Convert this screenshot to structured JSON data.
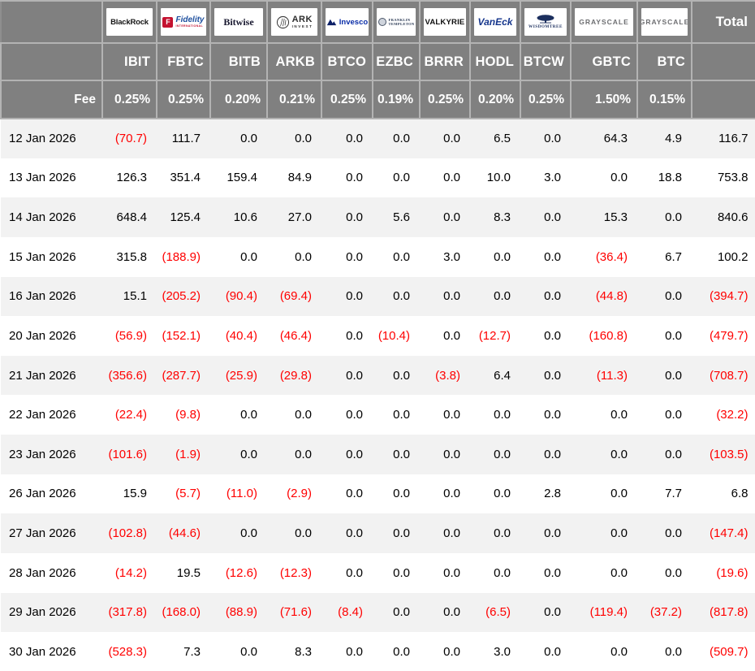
{
  "colors": {
    "header_bg": "#808080",
    "row_stripe": "#f2f2f2",
    "negative": "#ff0000",
    "header_text": "#ffffff"
  },
  "table": {
    "fee_label": "Fee",
    "total_label": "Total",
    "funds": [
      {
        "provider": "BlackRock",
        "ticker": "IBIT",
        "fee": "0.25%",
        "logo": "blackrock",
        "logo_lines": [
          "BlackRock"
        ]
      },
      {
        "provider": "Fidelity International",
        "ticker": "FBTC",
        "fee": "0.25%",
        "logo": "fidelity",
        "logo_lines": [
          "F",
          "Fidelity",
          "INTERNATIONAL"
        ]
      },
      {
        "provider": "Bitwise",
        "ticker": "BITB",
        "fee": "0.20%",
        "logo": "bitwise",
        "logo_lines": [
          "Bitwise"
        ]
      },
      {
        "provider": "ARK Invest",
        "ticker": "ARKB",
        "fee": "0.21%",
        "logo": "ark",
        "logo_lines": [
          "ARK",
          "INVEST"
        ]
      },
      {
        "provider": "Invesco",
        "ticker": "BTCO",
        "fee": "0.25%",
        "logo": "invesco",
        "logo_lines": [
          "Invesco"
        ]
      },
      {
        "provider": "Franklin Templeton",
        "ticker": "EZBC",
        "fee": "0.19%",
        "logo": "franklin",
        "logo_lines": [
          "FRANKLIN",
          "TEMPLETON"
        ]
      },
      {
        "provider": "Valkyrie",
        "ticker": "BRRR",
        "fee": "0.25%",
        "logo": "valkyrie",
        "logo_lines": [
          "VALKYRIE"
        ]
      },
      {
        "provider": "VanEck",
        "ticker": "HODL",
        "fee": "0.20%",
        "logo": "vaneck",
        "logo_lines": [
          "VanEck"
        ]
      },
      {
        "provider": "WisdomTree",
        "ticker": "BTCW",
        "fee": "0.25%",
        "logo": "wisdomtree",
        "logo_lines": [
          "WISDOMTREE"
        ]
      },
      {
        "provider": "Grayscale",
        "ticker": "GBTC",
        "fee": "1.50%",
        "logo": "grayscale",
        "logo_lines": [
          "GRAYSCALE"
        ]
      },
      {
        "provider": "Grayscale",
        "ticker": "BTC",
        "fee": "0.15%",
        "logo": "grayscale",
        "logo_lines": [
          "GRAYSCALE"
        ]
      }
    ],
    "rows": [
      {
        "date": "12 Jan 2026",
        "values": [
          "(70.7)",
          "111.7",
          "0.0",
          "0.0",
          "0.0",
          "0.0",
          "0.0",
          "6.5",
          "0.0",
          "64.3",
          "4.9"
        ],
        "total": "116.7"
      },
      {
        "date": "13 Jan 2026",
        "values": [
          "126.3",
          "351.4",
          "159.4",
          "84.9",
          "0.0",
          "0.0",
          "0.0",
          "10.0",
          "3.0",
          "0.0",
          "18.8"
        ],
        "total": "753.8"
      },
      {
        "date": "14 Jan 2026",
        "values": [
          "648.4",
          "125.4",
          "10.6",
          "27.0",
          "0.0",
          "5.6",
          "0.0",
          "8.3",
          "0.0",
          "15.3",
          "0.0"
        ],
        "total": "840.6"
      },
      {
        "date": "15 Jan 2026",
        "values": [
          "315.8",
          "(188.9)",
          "0.0",
          "0.0",
          "0.0",
          "0.0",
          "3.0",
          "0.0",
          "0.0",
          "(36.4)",
          "6.7"
        ],
        "total": "100.2"
      },
      {
        "date": "16 Jan 2026",
        "values": [
          "15.1",
          "(205.2)",
          "(90.4)",
          "(69.4)",
          "0.0",
          "0.0",
          "0.0",
          "0.0",
          "0.0",
          "(44.8)",
          "0.0"
        ],
        "total": "(394.7)"
      },
      {
        "date": "20 Jan 2026",
        "values": [
          "(56.9)",
          "(152.1)",
          "(40.4)",
          "(46.4)",
          "0.0",
          "(10.4)",
          "0.0",
          "(12.7)",
          "0.0",
          "(160.8)",
          "0.0"
        ],
        "total": "(479.7)"
      },
      {
        "date": "21 Jan 2026",
        "values": [
          "(356.6)",
          "(287.7)",
          "(25.9)",
          "(29.8)",
          "0.0",
          "0.0",
          "(3.8)",
          "6.4",
          "0.0",
          "(11.3)",
          "0.0"
        ],
        "total": "(708.7)"
      },
      {
        "date": "22 Jan 2026",
        "values": [
          "(22.4)",
          "(9.8)",
          "0.0",
          "0.0",
          "0.0",
          "0.0",
          "0.0",
          "0.0",
          "0.0",
          "0.0",
          "0.0"
        ],
        "total": "(32.2)"
      },
      {
        "date": "23 Jan 2026",
        "values": [
          "(101.6)",
          "(1.9)",
          "0.0",
          "0.0",
          "0.0",
          "0.0",
          "0.0",
          "0.0",
          "0.0",
          "0.0",
          "0.0"
        ],
        "total": "(103.5)"
      },
      {
        "date": "26 Jan 2026",
        "values": [
          "15.9",
          "(5.7)",
          "(11.0)",
          "(2.9)",
          "0.0",
          "0.0",
          "0.0",
          "0.0",
          "2.8",
          "0.0",
          "7.7"
        ],
        "total": "6.8"
      },
      {
        "date": "27 Jan 2026",
        "values": [
          "(102.8)",
          "(44.6)",
          "0.0",
          "0.0",
          "0.0",
          "0.0",
          "0.0",
          "0.0",
          "0.0",
          "0.0",
          "0.0"
        ],
        "total": "(147.4)"
      },
      {
        "date": "28 Jan 2026",
        "values": [
          "(14.2)",
          "19.5",
          "(12.6)",
          "(12.3)",
          "0.0",
          "0.0",
          "0.0",
          "0.0",
          "0.0",
          "0.0",
          "0.0"
        ],
        "total": "(19.6)"
      },
      {
        "date": "29 Jan 2026",
        "values": [
          "(317.8)",
          "(168.0)",
          "(88.9)",
          "(71.6)",
          "(8.4)",
          "0.0",
          "0.0",
          "(6.5)",
          "0.0",
          "(119.4)",
          "(37.2)"
        ],
        "total": "(817.8)"
      },
      {
        "date": "30 Jan 2026",
        "values": [
          "(528.3)",
          "7.3",
          "0.0",
          "8.3",
          "0.0",
          "0.0",
          "0.0",
          "3.0",
          "0.0",
          "0.0",
          "0.0"
        ],
        "total": "(509.7)"
      }
    ]
  }
}
